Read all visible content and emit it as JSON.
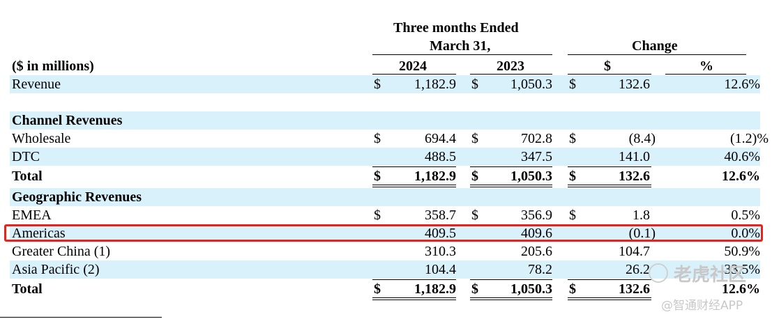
{
  "header": {
    "period_title_line1": "Three months Ended",
    "period_title_line2": "March 31,",
    "change_title": "Change",
    "unit_label": "($ in millions)",
    "col_2024": "2024",
    "col_2023": "2023",
    "col_change_dollar": "$",
    "col_change_pct": "%"
  },
  "rows": [
    {
      "label": "Revenue",
      "d1": "$",
      "v2024": "1,182.9",
      "d2": "$",
      "v2023": "1,050.3",
      "d3": "$",
      "chg": "132.6",
      "pct": "12.6%"
    },
    {
      "label": "Channel Revenues"
    },
    {
      "label": "Wholesale",
      "d1": "$",
      "v2024": "694.4",
      "d2": "$",
      "v2023": "702.8",
      "d3": "$",
      "chg": "(8.4)",
      "pct": "(1.2)%"
    },
    {
      "label": "DTC",
      "v2024": "488.5",
      "v2023": "347.5",
      "chg": "141.0",
      "pct": "40.6%"
    },
    {
      "label": "Total",
      "d1": "$",
      "v2024": "1,182.9",
      "d2": "$",
      "v2023": "1,050.3",
      "d3": "$",
      "chg": "132.6",
      "pct": "12.6%"
    },
    {
      "label": "Geographic Revenues"
    },
    {
      "label": "EMEA",
      "d1": "$",
      "v2024": "358.7",
      "d2": "$",
      "v2023": "356.9",
      "d3": "$",
      "chg": "1.8",
      "pct": "0.5%"
    },
    {
      "label": "Americas",
      "v2024": "409.5",
      "v2023": "409.6",
      "chg": "(0.1)",
      "pct": "0.0%"
    },
    {
      "label": "Greater China (1)",
      "v2024": "310.3",
      "v2023": "205.6",
      "chg": "104.7",
      "pct": "50.9%"
    },
    {
      "label": "Asia Pacific (2)",
      "v2024": "104.4",
      "v2023": "78.2",
      "chg": "26.2",
      "pct": "33.5%"
    },
    {
      "label": "Total",
      "d1": "$",
      "v2024": "1,182.9",
      "d2": "$",
      "v2023": "1,050.3",
      "d3": "$",
      "chg": "132.6",
      "pct": "12.6%"
    }
  ],
  "watermark": {
    "line1": "老虎社区",
    "line2": "@智通财经APP"
  },
  "colors": {
    "row_shade": "#d9f1fb",
    "highlight_border": "#e8231b"
  }
}
